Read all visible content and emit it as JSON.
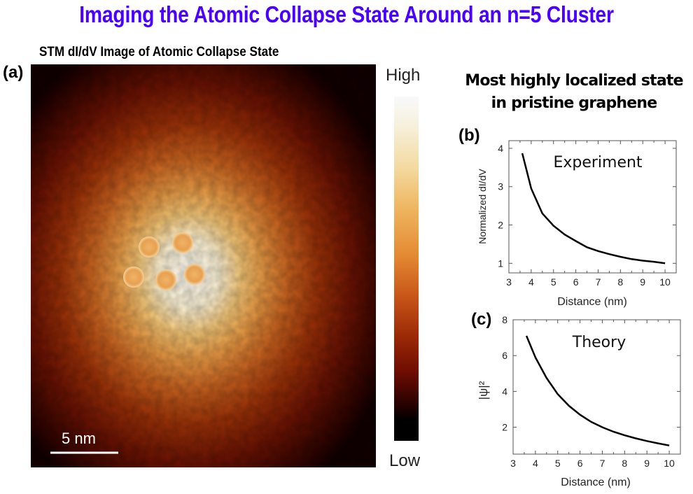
{
  "title": "Imaging the Atomic Collapse State Around an n=5 Cluster",
  "panel_a": {
    "label": "(a)",
    "subtitle": "STM dI/dV Image of Atomic Collapse State",
    "scale_bar_label": "5 nm",
    "cluster_atoms": 5,
    "colorbar": {
      "high_label": "High",
      "low_label": "Low",
      "colormap": [
        "#f9f9fb",
        "#f4dba4",
        "#eeb45e",
        "#e48a33",
        "#c85618",
        "#9a2806",
        "#6e0d02",
        "#000000"
      ]
    }
  },
  "side_heading": {
    "line1": "Most highly localized state",
    "line2": "in pristine graphene"
  },
  "panel_b": {
    "label": "(b)",
    "annotation": "Experiment",
    "xlabel": "Distance (nm)",
    "ylabel": "Normalized dI/dV",
    "xticks": [
      "3",
      "4",
      "5",
      "6",
      "7",
      "8",
      "9",
      "10"
    ],
    "yticks": [
      "1",
      "2",
      "3",
      "4"
    ]
  },
  "panel_c": {
    "label": "(c)",
    "annotation": "Theory",
    "xlabel": "Distance (nm)",
    "ylabel": "|ψ|²",
    "xticks": [
      "3",
      "4",
      "5",
      "6",
      "7",
      "8",
      "9",
      "10"
    ],
    "yticks": [
      "2",
      "4",
      "6",
      "8"
    ]
  },
  "chart_data": [
    {
      "type": "line",
      "title": "Experiment",
      "xlabel": "Distance (nm)",
      "ylabel": "Normalized dI/dV",
      "xlim": [
        3,
        10.5
      ],
      "ylim": [
        0.75,
        4.2
      ],
      "x": [
        3.6,
        4.0,
        4.5,
        5.0,
        5.5,
        6.0,
        6.5,
        7.0,
        7.5,
        8.0,
        8.5,
        9.0,
        9.5,
        10.0
      ],
      "series": [
        {
          "name": "Experiment",
          "values": [
            3.87,
            2.95,
            2.3,
            1.98,
            1.75,
            1.58,
            1.42,
            1.32,
            1.24,
            1.17,
            1.11,
            1.07,
            1.04,
            1.0
          ]
        }
      ],
      "grid": false,
      "legend": "none"
    },
    {
      "type": "line",
      "title": "Theory",
      "xlabel": "Distance (nm)",
      "ylabel": "|ψ|²",
      "xlim": [
        3,
        10.5
      ],
      "ylim": [
        0.5,
        8
      ],
      "x": [
        3.6,
        4.0,
        4.5,
        5.0,
        5.5,
        6.0,
        6.5,
        7.0,
        7.5,
        8.0,
        8.5,
        9.0,
        9.5,
        10.0
      ],
      "series": [
        {
          "name": "Theory",
          "values": [
            7.1,
            5.9,
            4.75,
            3.85,
            3.2,
            2.7,
            2.3,
            2.0,
            1.75,
            1.55,
            1.38,
            1.23,
            1.1,
            0.98
          ]
        }
      ],
      "grid": false,
      "legend": "none"
    }
  ]
}
